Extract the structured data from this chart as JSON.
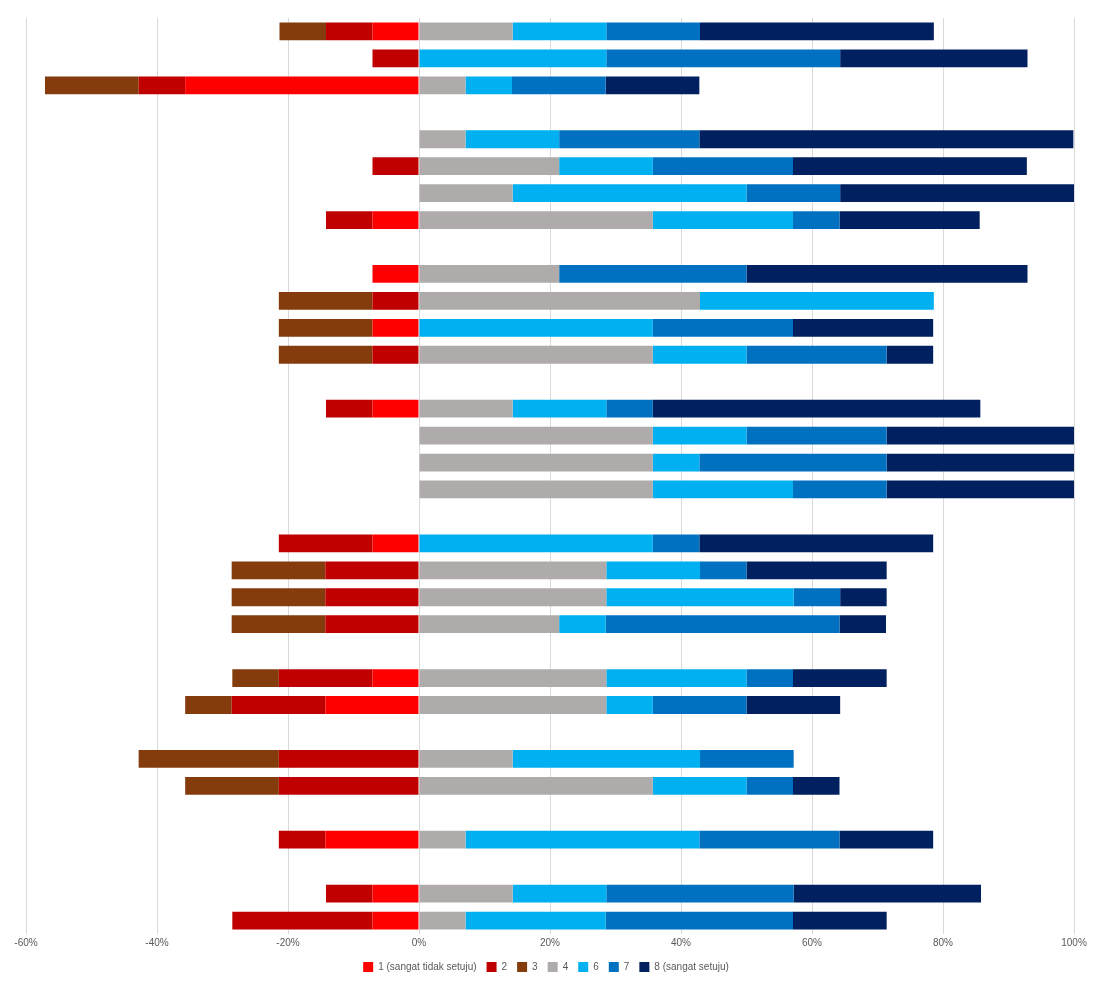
{
  "chart_data": {
    "type": "bar",
    "orientation": "horizontal",
    "stacked": true,
    "categories": [
      null,
      null,
      null,
      null,
      null,
      null,
      null,
      null,
      null,
      null,
      null,
      null,
      null,
      null,
      null,
      null,
      null,
      null,
      null,
      null,
      null,
      null,
      null,
      null,
      null,
      null,
      null,
      null,
      null,
      null,
      null,
      null,
      null,
      null
    ],
    "series": [
      {
        "name": "1 (sangat tidak setuju)",
        "color": "#ff0000",
        "values": [
          -7.1,
          null,
          -35.7,
          null,
          null,
          null,
          null,
          -7.1,
          null,
          -7.1,
          null,
          -7.1,
          null,
          null,
          -7.1,
          null,
          null,
          null,
          null,
          -7.1,
          null,
          null,
          null,
          null,
          -7.1,
          -14.3,
          null,
          null,
          null,
          null,
          -14.3,
          null,
          -7.1,
          -7.1
        ]
      },
      {
        "name": "2",
        "color": "#c00000",
        "values": [
          -7.1,
          -7.1,
          -7.1,
          null,
          null,
          -7.1,
          null,
          -7.1,
          null,
          null,
          -7.1,
          null,
          -7.1,
          null,
          -7.1,
          null,
          null,
          null,
          null,
          -14.3,
          -14.3,
          -14.3,
          -14.3,
          null,
          -14.3,
          -14.3,
          null,
          -21.4,
          -21.4,
          null,
          -7.1,
          null,
          -7.1,
          -21.4
        ]
      },
      {
        "name": "3",
        "color": "#843c0c",
        "values": [
          -7.1,
          null,
          -14.3,
          null,
          null,
          null,
          null,
          null,
          null,
          null,
          -14.3,
          -14.3,
          -14.3,
          null,
          null,
          null,
          null,
          null,
          null,
          null,
          -14.3,
          -14.3,
          -14.3,
          null,
          -7.1,
          -7.1,
          null,
          -21.4,
          -14.3,
          null,
          null,
          null,
          null,
          null
        ]
      },
      {
        "name": "4",
        "color": "#afabab",
        "values": [
          14.3,
          null,
          7.1,
          null,
          7.1,
          21.4,
          14.3,
          35.7,
          null,
          21.4,
          42.9,
          null,
          35.7,
          null,
          14.3,
          35.7,
          35.7,
          35.7,
          null,
          null,
          28.6,
          28.6,
          21.4,
          null,
          28.6,
          28.6,
          null,
          14.3,
          35.7,
          null,
          7.1,
          null,
          14.3,
          7.1
        ]
      },
      {
        "name": "6",
        "color": "#00b0f0",
        "values": [
          14.3,
          28.6,
          7.1,
          null,
          14.3,
          14.3,
          35.7,
          21.4,
          null,
          null,
          35.7,
          35.7,
          14.3,
          null,
          14.3,
          14.3,
          7.1,
          21.4,
          null,
          35.7,
          14.3,
          28.6,
          7.1,
          null,
          21.4,
          7.1,
          null,
          28.6,
          14.3,
          null,
          35.7,
          null,
          14.3,
          21.4
        ]
      },
      {
        "name": "7",
        "color": "#0070c0",
        "values": [
          14.3,
          35.7,
          14.3,
          null,
          21.4,
          21.4,
          14.3,
          7.1,
          null,
          28.6,
          null,
          21.4,
          21.4,
          null,
          7.1,
          21.4,
          28.6,
          14.3,
          null,
          7.1,
          7.1,
          7.1,
          35.7,
          null,
          7.1,
          14.3,
          null,
          14.3,
          7.1,
          null,
          21.4,
          null,
          28.6,
          28.6
        ]
      },
      {
        "name": "8 (sangat setuju)",
        "color": "#002060",
        "values": [
          35.7,
          28.6,
          14.3,
          null,
          57.1,
          35.7,
          35.7,
          21.4,
          null,
          42.9,
          null,
          21.4,
          7.1,
          null,
          50,
          28.6,
          28.6,
          28.6,
          null,
          35.7,
          21.4,
          7.1,
          7.1,
          null,
          14.3,
          14.3,
          null,
          null,
          7.1,
          null,
          14.3,
          null,
          28.6,
          14.3
        ]
      }
    ],
    "xlim": [
      -60,
      100
    ],
    "xticks": [
      {
        "value": -60,
        "label": "-60%"
      },
      {
        "value": -40,
        "label": "-40%"
      },
      {
        "value": -20,
        "label": "-20%"
      },
      {
        "value": 0,
        "label": "0%"
      },
      {
        "value": 20,
        "label": "20%"
      },
      {
        "value": 40,
        "label": "40%"
      },
      {
        "value": 60,
        "label": "60%"
      },
      {
        "value": 80,
        "label": "80%"
      },
      {
        "value": 100,
        "label": "100%"
      }
    ],
    "grid": "x",
    "legend": "bottom"
  }
}
